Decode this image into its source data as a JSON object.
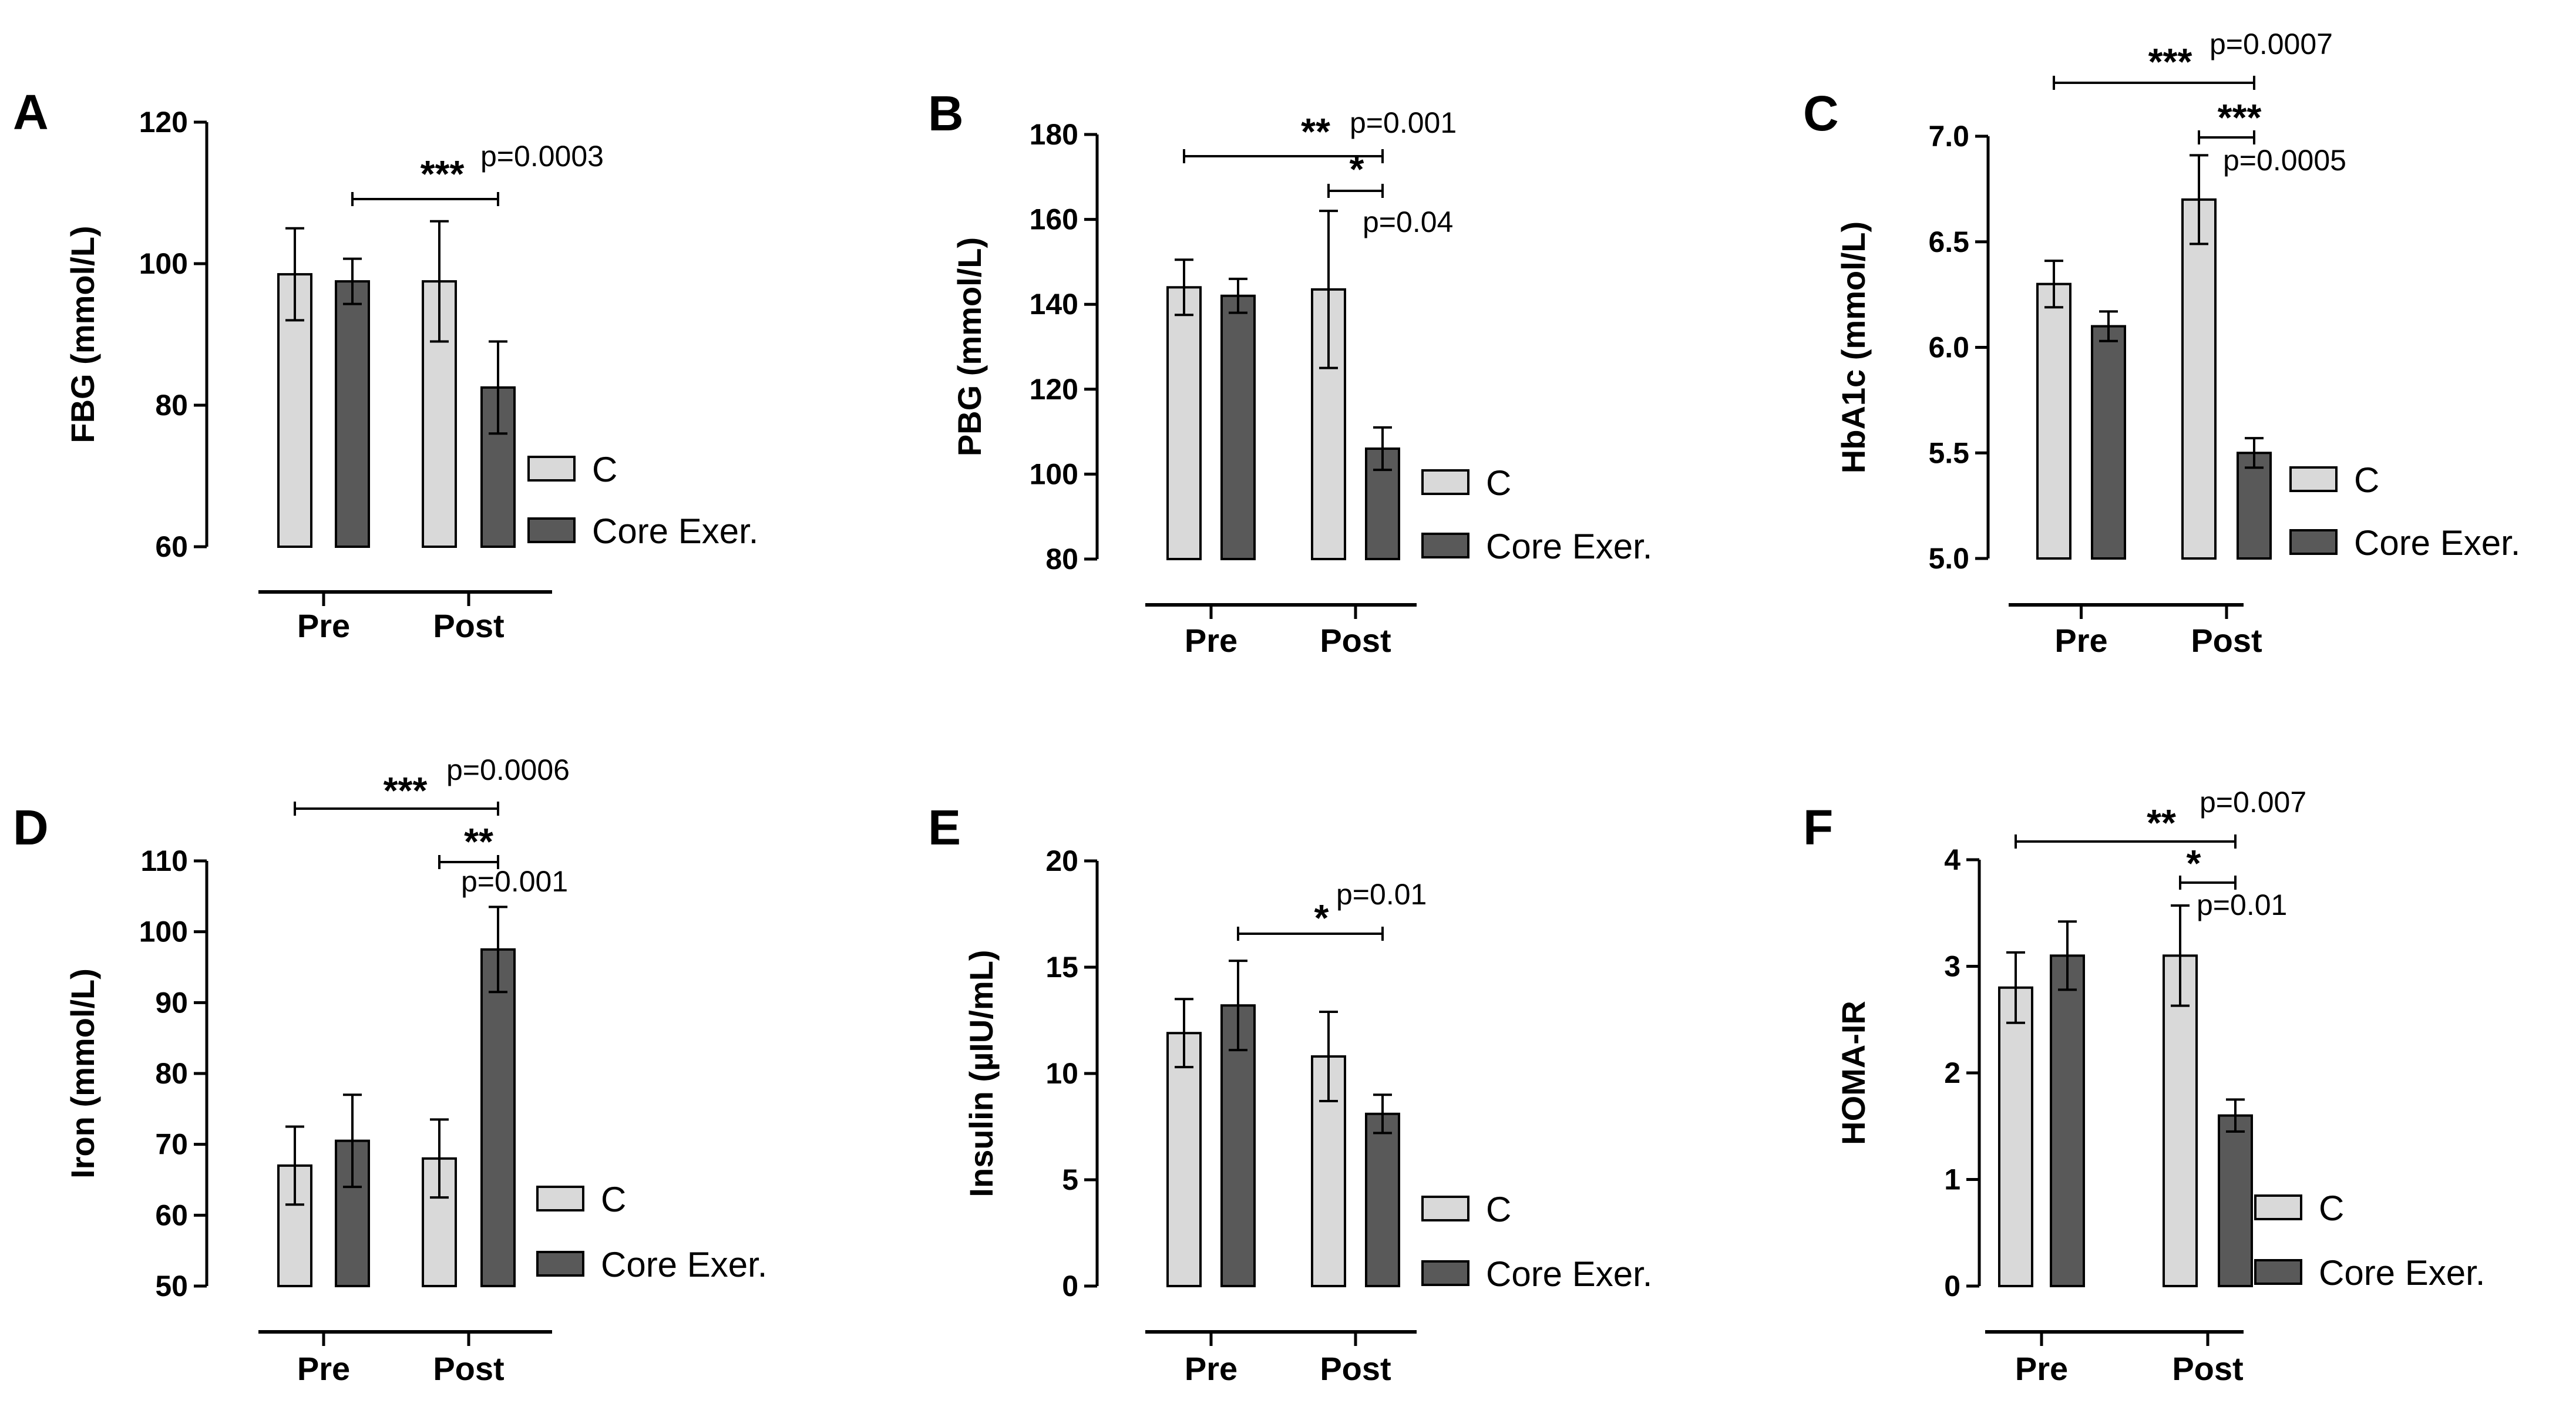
{
  "colors": {
    "C": "#d9d9d9",
    "Core Exer.": "#595959",
    "stroke": "#000000"
  },
  "chart_data": [
    {
      "type": "bar",
      "panel": "A",
      "ylabel": "FBG (mmol/L)",
      "categories": [
        "Pre",
        "Post"
      ],
      "ylim": [
        60,
        120
      ],
      "yticks": [
        60,
        80,
        100,
        120
      ],
      "series": [
        {
          "name": "C",
          "values": [
            98.5,
            97.5
          ],
          "errors": [
            6.5,
            8.5
          ]
        },
        {
          "name": "Core Exer.",
          "values": [
            97.5,
            82.5
          ],
          "errors": [
            3.2,
            6.5
          ]
        }
      ],
      "legend": [
        "C",
        "Core Exer."
      ],
      "annotations": [
        {
          "stars": "***",
          "p": "p=0.0003",
          "from": [
            0,
            1
          ],
          "to": [
            1,
            1
          ]
        }
      ]
    },
    {
      "type": "bar",
      "panel": "B",
      "ylabel": "PBG (mmol/L)",
      "categories": [
        "Pre",
        "Post"
      ],
      "ylim": [
        80,
        180
      ],
      "yticks": [
        80,
        100,
        120,
        140,
        160,
        180
      ],
      "series": [
        {
          "name": "C",
          "values": [
            144,
            143.5
          ],
          "errors": [
            6.5,
            18.5
          ]
        },
        {
          "name": "Core Exer.",
          "values": [
            142,
            106
          ],
          "errors": [
            4,
            5
          ]
        }
      ],
      "legend": [
        "C",
        "Core Exer."
      ],
      "annotations": [
        {
          "stars": "**",
          "p": "p=0.001",
          "from": [
            0,
            0
          ],
          "to": [
            1,
            1
          ]
        },
        {
          "stars": "*",
          "p": "p=0.04",
          "from": [
            1,
            0
          ],
          "to": [
            1,
            1
          ]
        }
      ]
    },
    {
      "type": "bar",
      "panel": "C",
      "ylabel": "HbA1c (mmol/L)",
      "categories": [
        "Pre",
        "Post"
      ],
      "ylim": [
        5.0,
        7.0
      ],
      "yticks": [
        "5.0",
        "5.5",
        "6.0",
        "6.5",
        "7.0"
      ],
      "series": [
        {
          "name": "C",
          "values": [
            6.3,
            6.7
          ],
          "errors": [
            0.11,
            0.21
          ]
        },
        {
          "name": "Core Exer.",
          "values": [
            6.1,
            5.5
          ],
          "errors": [
            0.07,
            0.07
          ]
        }
      ],
      "legend": [
        "C",
        "Core Exer."
      ],
      "annotations": [
        {
          "stars": "***",
          "p": "p=0.0007",
          "from": [
            0,
            0
          ],
          "to": [
            1,
            1
          ]
        },
        {
          "stars": "***",
          "p": "p=0.0005",
          "from": [
            1,
            0
          ],
          "to": [
            1,
            1
          ]
        }
      ]
    },
    {
      "type": "bar",
      "panel": "D",
      "ylabel": "Iron (mmol/L)",
      "categories": [
        "Pre",
        "Post"
      ],
      "ylim": [
        50,
        110
      ],
      "yticks": [
        50,
        60,
        70,
        80,
        90,
        100,
        110
      ],
      "series": [
        {
          "name": "C",
          "values": [
            67,
            68
          ],
          "errors": [
            5.5,
            5.5
          ]
        },
        {
          "name": "Core Exer.",
          "values": [
            70.5,
            97.5
          ],
          "errors": [
            6.5,
            6
          ]
        }
      ],
      "legend": [
        "C",
        "Core Exer."
      ],
      "annotations": [
        {
          "stars": "***",
          "p": "p=0.0006",
          "from": [
            0,
            0
          ],
          "to": [
            1,
            1
          ]
        },
        {
          "stars": "**",
          "p": "p=0.001",
          "from": [
            1,
            0
          ],
          "to": [
            1,
            1
          ]
        }
      ]
    },
    {
      "type": "bar",
      "panel": "E",
      "ylabel": "Insulin (µIU/mL)",
      "categories": [
        "Pre",
        "Post"
      ],
      "ylim": [
        0,
        20
      ],
      "yticks": [
        0,
        5,
        10,
        15,
        20
      ],
      "series": [
        {
          "name": "C",
          "values": [
            11.9,
            10.8
          ],
          "errors": [
            1.6,
            2.1
          ]
        },
        {
          "name": "Core Exer.",
          "values": [
            13.2,
            8.1
          ],
          "errors": [
            2.1,
            0.9
          ]
        }
      ],
      "legend": [
        "C",
        "Core Exer."
      ],
      "annotations": [
        {
          "stars": "*",
          "p": "p=0.01",
          "from": [
            0,
            1
          ],
          "to": [
            1,
            1
          ]
        }
      ]
    },
    {
      "type": "bar",
      "panel": "F",
      "ylabel": "HOMA-IR",
      "categories": [
        "Pre",
        "Post"
      ],
      "ylim": [
        0,
        4
      ],
      "yticks": [
        0,
        1,
        2,
        3,
        4
      ],
      "series": [
        {
          "name": "C",
          "values": [
            2.8,
            3.1
          ],
          "errors": [
            0.33,
            0.47
          ]
        },
        {
          "name": "Core Exer.",
          "values": [
            3.1,
            1.6
          ],
          "errors": [
            0.32,
            0.15
          ]
        }
      ],
      "legend": [
        "C",
        "Core Exer."
      ],
      "annotations": [
        {
          "stars": "**",
          "p": "p=0.007",
          "from": [
            0,
            0
          ],
          "to": [
            1,
            1
          ]
        },
        {
          "stars": "*",
          "p": "p=0.01",
          "from": [
            1,
            0
          ],
          "to": [
            1,
            1
          ]
        }
      ]
    }
  ]
}
